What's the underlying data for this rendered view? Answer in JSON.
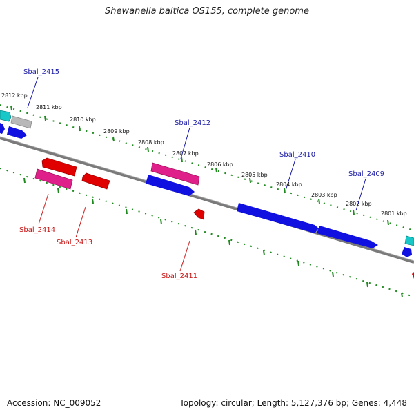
{
  "title": "Shewanella baltica OS155, complete genome",
  "footer": {
    "accession": "Accession: NC_009052",
    "summary": "Topology: circular; Length: 5,127,376 bp; Genes: 4,448"
  },
  "ticks": [
    {
      "label": "2812 kbp"
    },
    {
      "label": "2811 kbp"
    },
    {
      "label": "2810 kbp"
    },
    {
      "label": "2809 kbp"
    },
    {
      "label": "2808 kbp"
    },
    {
      "label": "2807 kbp"
    },
    {
      "label": "2806 kbp"
    },
    {
      "label": "2805 kbp"
    },
    {
      "label": "2804 kbp"
    },
    {
      "label": "2803 kbp"
    },
    {
      "label": "2802 kbp"
    },
    {
      "label": "2801 kbp"
    }
  ],
  "genes": [
    {
      "name": "Sbal_2415",
      "strand": "forward"
    },
    {
      "name": "Sbal_2414",
      "strand": "reverse"
    },
    {
      "name": "Sbal_2413",
      "strand": "reverse"
    },
    {
      "name": "Sbal_2412",
      "strand": "forward"
    },
    {
      "name": "Sbal_2411",
      "strand": "reverse"
    },
    {
      "name": "Sbal_2410",
      "strand": "forward"
    },
    {
      "name": "Sbal_2409",
      "strand": "forward"
    }
  ],
  "colors": {
    "forward_label": "#1a1aa6",
    "reverse_label": "#c81414",
    "backbone": "#7a7a7a",
    "tick_marks": "#1f8a1f",
    "cds_blue": "#1010e0",
    "cds_red": "#e00000",
    "cds_pink": "#e0208a",
    "cds_cyan": "#18c8c8",
    "cds_grey": "#b0b0b0"
  }
}
